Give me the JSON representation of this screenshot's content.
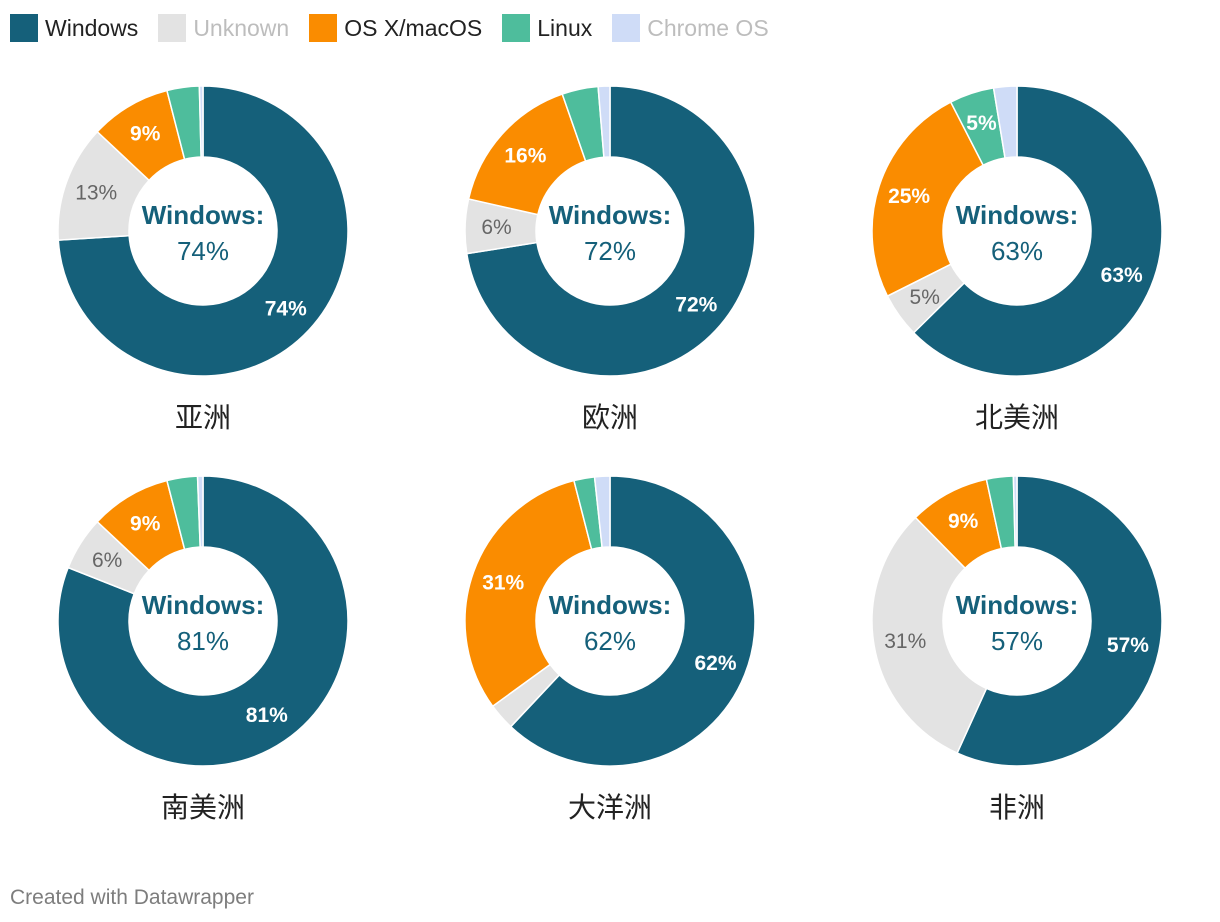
{
  "legend": [
    {
      "name": "Windows",
      "color": "#15607a",
      "text_color": "#222222"
    },
    {
      "name": "Unknown",
      "color": "#e3e3e3",
      "text_color": "#bdbdbd"
    },
    {
      "name": "OS X/macOS",
      "color": "#fa8c00",
      "text_color": "#222222"
    },
    {
      "name": "Linux",
      "color": "#4ebd9c",
      "text_color": "#222222"
    },
    {
      "name": "Chrome OS",
      "color": "#cfdcf7",
      "text_color": "#bdbdbd"
    }
  ],
  "chart_data": {
    "type": "pie",
    "series_names": [
      "Windows",
      "Unknown",
      "OS X/macOS",
      "Linux",
      "Chrome OS"
    ],
    "center_label": "Windows:",
    "charts": [
      {
        "title": "亚洲",
        "center_value": "74%",
        "values": [
          74,
          13,
          9,
          3.6,
          0.4
        ],
        "labels": [
          "74%",
          "13%",
          "9%",
          "",
          ""
        ]
      },
      {
        "title": "欧洲",
        "center_value": "72%",
        "values": [
          72,
          6,
          16,
          4,
          1.3
        ],
        "labels": [
          "72%",
          "6%",
          "16%",
          "",
          ""
        ]
      },
      {
        "title": "北美洲",
        "center_value": "63%",
        "values": [
          63,
          5,
          25,
          5,
          2.6
        ],
        "labels": [
          "63%",
          "5%",
          "25%",
          "5%",
          ""
        ]
      },
      {
        "title": "南美洲",
        "center_value": "81%",
        "values": [
          81,
          6,
          9,
          3.4,
          0.6
        ],
        "labels": [
          "81%",
          "6%",
          "9%",
          "",
          ""
        ]
      },
      {
        "title": "大洋洲",
        "center_value": "62%",
        "values": [
          62,
          3,
          31,
          2.3,
          1.7
        ],
        "labels": [
          "62%",
          "",
          "31%",
          "",
          ""
        ]
      },
      {
        "title": "非洲",
        "center_value": "57%",
        "values": [
          57,
          31,
          9,
          3,
          0.4
        ],
        "labels": [
          "57%",
          "31%",
          "9%",
          "",
          ""
        ]
      }
    ]
  },
  "footer": "Created with Datawrapper"
}
